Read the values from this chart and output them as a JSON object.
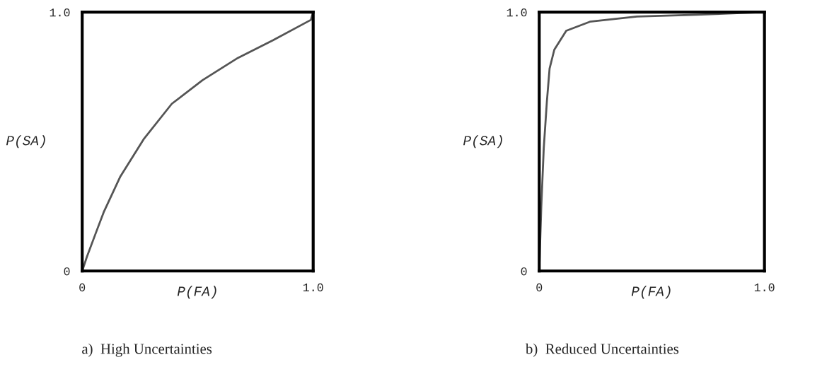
{
  "chart_data": [
    {
      "type": "line",
      "title": "a)  High Uncertainties",
      "xlabel": "P(FA)",
      "ylabel": "P(SA)",
      "xlim": [
        0,
        1.0
      ],
      "ylim": [
        0,
        1.0
      ],
      "xticks": [
        0,
        {
          "value": 1.0,
          "label": "1.0"
        }
      ],
      "yticks": [
        0,
        {
          "value": 1.0,
          "label": "1.0"
        }
      ],
      "series": [
        {
          "color": "#555555",
          "x": [
            0,
            0.02,
            0.062,
            0.093,
            0.164,
            0.266,
            0.388,
            0.521,
            0.674,
            0.827,
            0.99,
            1.0
          ],
          "values": [
            0,
            0.054,
            0.154,
            0.227,
            0.363,
            0.509,
            0.646,
            0.737,
            0.823,
            0.892,
            0.97,
            1.0
          ]
        }
      ]
    },
    {
      "type": "line",
      "title": "b)  Reduced Uncertainties",
      "xlabel": "P(FA)",
      "ylabel": "P(SA)",
      "xlim": [
        0,
        1.0
      ],
      "ylim": [
        0,
        1.0
      ],
      "xticks": [
        0,
        {
          "value": 1.0,
          "label": "1.0"
        }
      ],
      "yticks": [
        0,
        {
          "value": 1.0,
          "label": "1.0"
        }
      ],
      "series": [
        {
          "color": "#555555",
          "x": [
            0,
            0.009,
            0.02,
            0.034,
            0.046,
            0.067,
            0.12,
            0.225,
            0.434,
            0.696,
            1.0
          ],
          "values": [
            0,
            0.245,
            0.473,
            0.655,
            0.782,
            0.855,
            0.928,
            0.963,
            0.983,
            0.99,
            1.0
          ]
        }
      ]
    }
  ]
}
